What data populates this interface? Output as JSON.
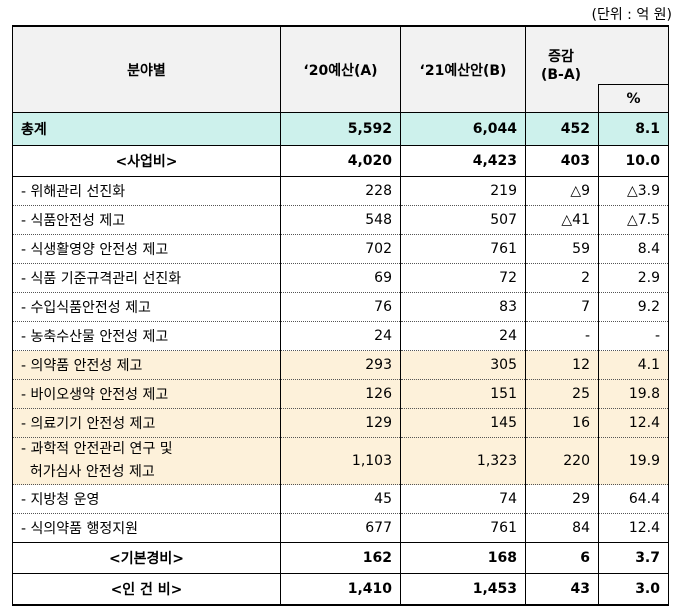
{
  "unit_note": "(단위 : 억 원)",
  "header": {
    "col_field": "분야별",
    "col_2020": "‘20예산(A)",
    "col_2021": "‘21예산안(B)",
    "col_change": "증감\n(B-A)",
    "col_pct": "%"
  },
  "rows": [
    {
      "type": "total",
      "name": "총계",
      "a": "5,592",
      "b": "6,044",
      "diff": "452",
      "pct": "8.1"
    },
    {
      "type": "sec",
      "name": "<사업비>",
      "a": "4,020",
      "b": "4,423",
      "diff": "403",
      "pct": "10.0"
    },
    {
      "type": "item",
      "name": "- 위해관리 선진화",
      "a": "228",
      "b": "219",
      "diff": "△9",
      "pct": "△3.9"
    },
    {
      "type": "item",
      "name": "- 식품안전성 제고",
      "a": "548",
      "b": "507",
      "diff": "△41",
      "pct": "△7.5"
    },
    {
      "type": "item",
      "name": "- 식생활영양 안전성 제고",
      "a": "702",
      "b": "761",
      "diff": "59",
      "pct": "8.4"
    },
    {
      "type": "item",
      "name": "- 식품 기준규격관리 선진화",
      "a": "69",
      "b": "72",
      "diff": "2",
      "pct": "2.9"
    },
    {
      "type": "item",
      "name": "- 수입식품안전성 제고",
      "a": "76",
      "b": "83",
      "diff": "7",
      "pct": "9.2"
    },
    {
      "type": "item",
      "name": "- 농축수산물 안전성 제고",
      "a": "24",
      "b": "24",
      "diff": "-",
      "pct": "-"
    },
    {
      "type": "item hl",
      "name": "- 의약품 안전성 제고",
      "a": "293",
      "b": "305",
      "diff": "12",
      "pct": "4.1"
    },
    {
      "type": "item hl",
      "name": "- 바이오생약 안전성 제고",
      "a": "126",
      "b": "151",
      "diff": "25",
      "pct": "19.8"
    },
    {
      "type": "item hl",
      "name": "- 의료기기 안전성 제고",
      "a": "129",
      "b": "145",
      "diff": "16",
      "pct": "12.4"
    },
    {
      "type": "item hl tall",
      "name": "- 과학적 안전관리 연구 및\n  허가심사 안전성 제고",
      "a": "1,103",
      "b": "1,323",
      "diff": "220",
      "pct": "19.9"
    },
    {
      "type": "item",
      "name": "- 지방청 운영",
      "a": "45",
      "b": "74",
      "diff": "29",
      "pct": "64.4"
    },
    {
      "type": "item",
      "name": "- 식의약품 행정지원",
      "a": "677",
      "b": "761",
      "diff": "84",
      "pct": "12.4"
    },
    {
      "type": "sec",
      "name": "<기본경비>",
      "a": "162",
      "b": "168",
      "diff": "6",
      "pct": "3.7"
    },
    {
      "type": "sec last",
      "name": "<인 건 비>",
      "a": "1,410",
      "b": "1,453",
      "diff": "43",
      "pct": "3.0"
    }
  ]
}
